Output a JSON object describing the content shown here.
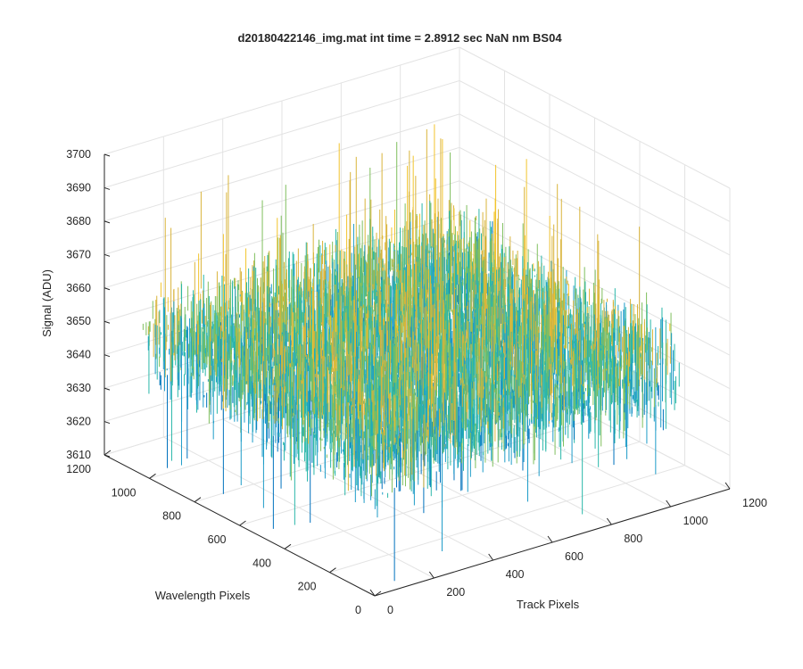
{
  "chart_data": {
    "type": "surface",
    "title": "d20180422146_img.mat int time = 2.8912 sec  NaN nm BS04",
    "xlabel": "Track Pixels",
    "ylabel": "Wavelength Pixels",
    "zlabel": "Signal (ADU)",
    "xlim": [
      0,
      1200
    ],
    "ylim": [
      0,
      1200
    ],
    "zlim": [
      3610,
      3700
    ],
    "x_ticks": [
      "0",
      "200",
      "400",
      "600",
      "800",
      "1000",
      "1200"
    ],
    "y_ticks": [
      "0",
      "200",
      "400",
      "600",
      "800",
      "1000",
      "1200"
    ],
    "z_ticks": [
      "3610",
      "3620",
      "3630",
      "3640",
      "3650",
      "3660",
      "3670",
      "3680",
      "3690",
      "3700"
    ],
    "data_extent": {
      "x": [
        0,
        1024
      ],
      "y": [
        0,
        1024
      ]
    },
    "signal_mean": 3651,
    "signal_spread": [
      3625,
      3680
    ],
    "signal_peaks": [
      3612,
      3695
    ],
    "colormap": [
      "#0072bd",
      "#1e9cc8",
      "#2ab7a9",
      "#7fbf5e",
      "#d9b43b",
      "#f2c42d"
    ],
    "grid": true,
    "view": "3-D perspective"
  }
}
